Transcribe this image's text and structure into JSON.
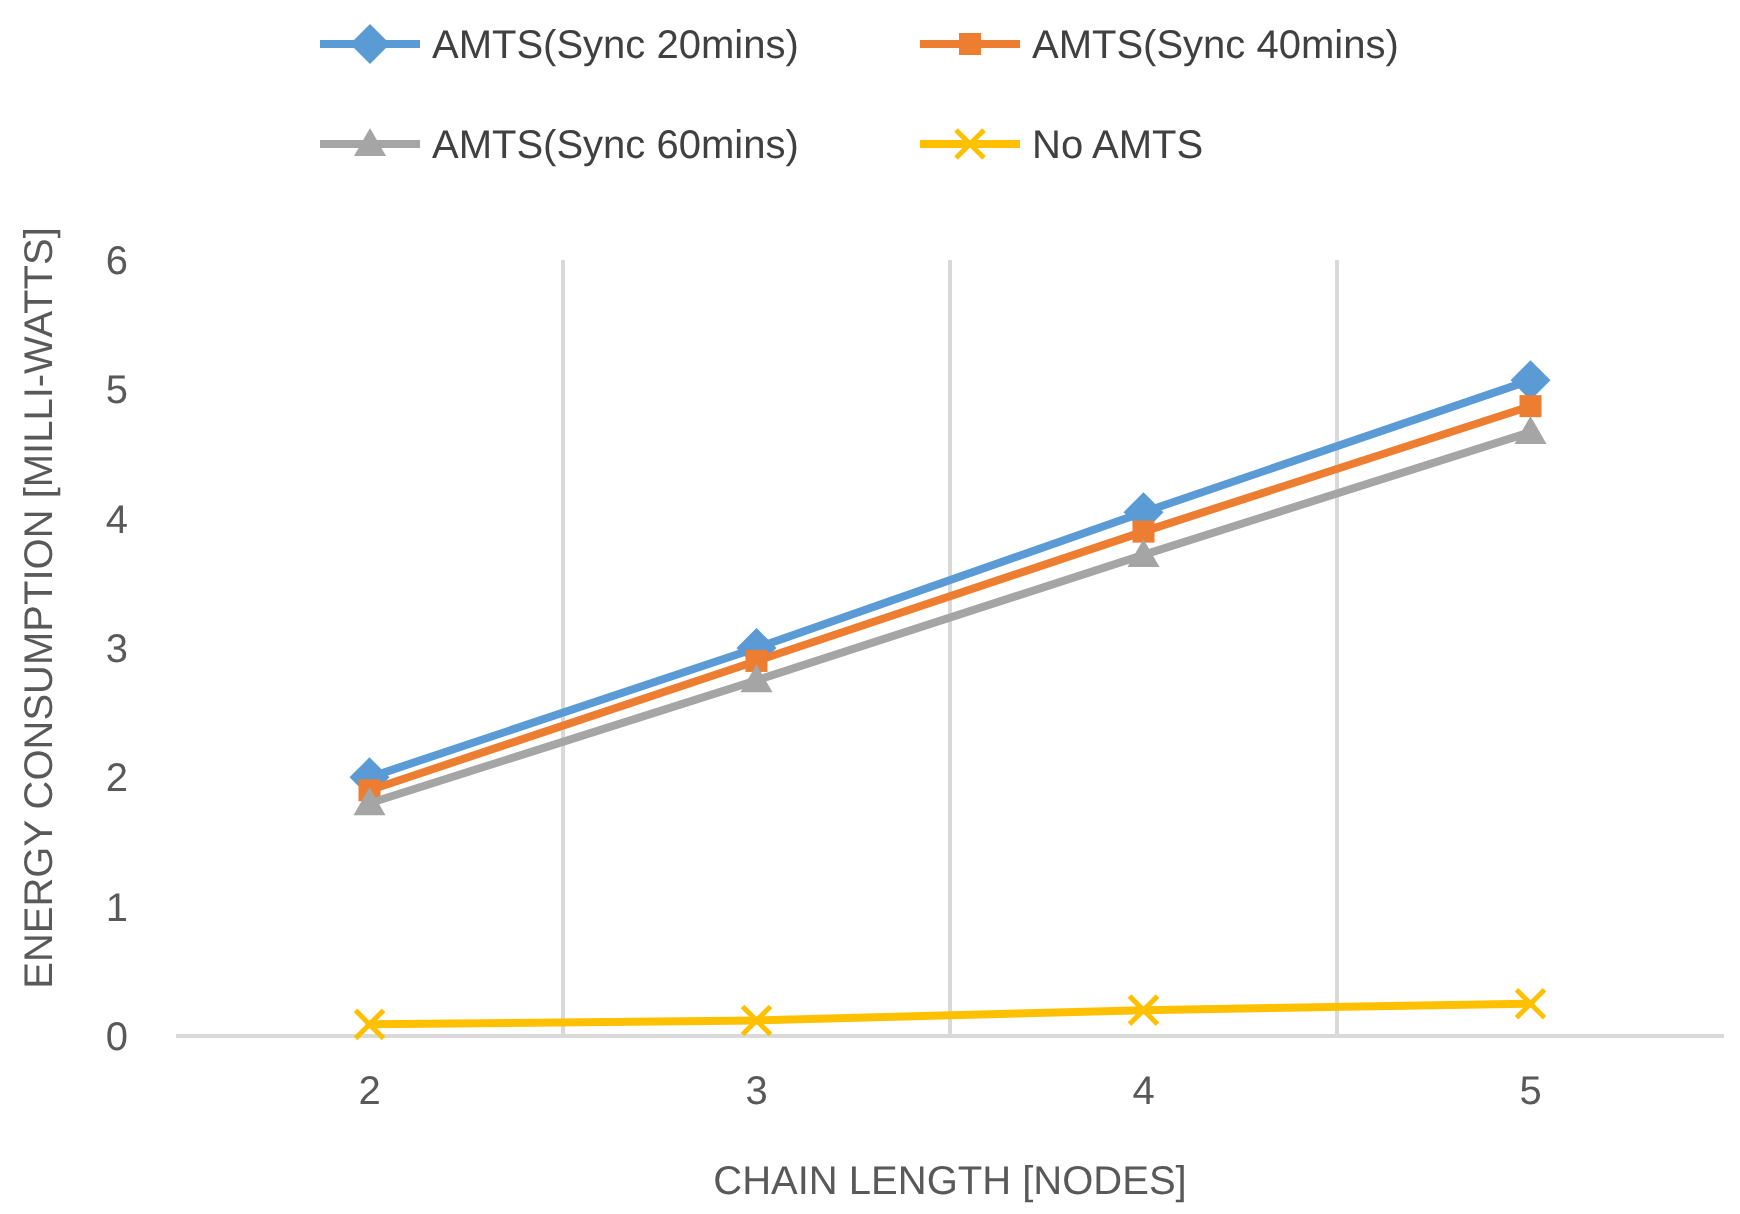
{
  "chart_data": {
    "type": "line",
    "xlabel": "CHAIN LENGTH [NODES]",
    "ylabel": "ENERGY CONSUMPTION [MILLI-WATTS]",
    "categories": [
      "2",
      "3",
      "4",
      "5"
    ],
    "ylim": [
      0,
      6
    ],
    "yticks": [
      0,
      1,
      2,
      3,
      4,
      5,
      6
    ],
    "grid": "x",
    "legend": "top",
    "line_style": "solid",
    "series": [
      {
        "name": "AMTS(Sync 20mins)",
        "color": "#5b9bd5",
        "marker": "diamond",
        "values": [
          2.0,
          3.0,
          4.05,
          5.07
        ]
      },
      {
        "name": "AMTS(Sync 40mins)",
        "color": "#ed7d31",
        "marker": "square",
        "values": [
          1.9,
          2.9,
          3.9,
          4.87
        ]
      },
      {
        "name": "AMTS(Sync 60mins)",
        "color": "#a5a5a5",
        "marker": "triangle",
        "values": [
          1.8,
          2.75,
          3.72,
          4.67
        ]
      },
      {
        "name": "No AMTS",
        "color": "#ffc000",
        "marker": "cross",
        "values": [
          0.09,
          0.12,
          0.2,
          0.25
        ]
      }
    ]
  }
}
